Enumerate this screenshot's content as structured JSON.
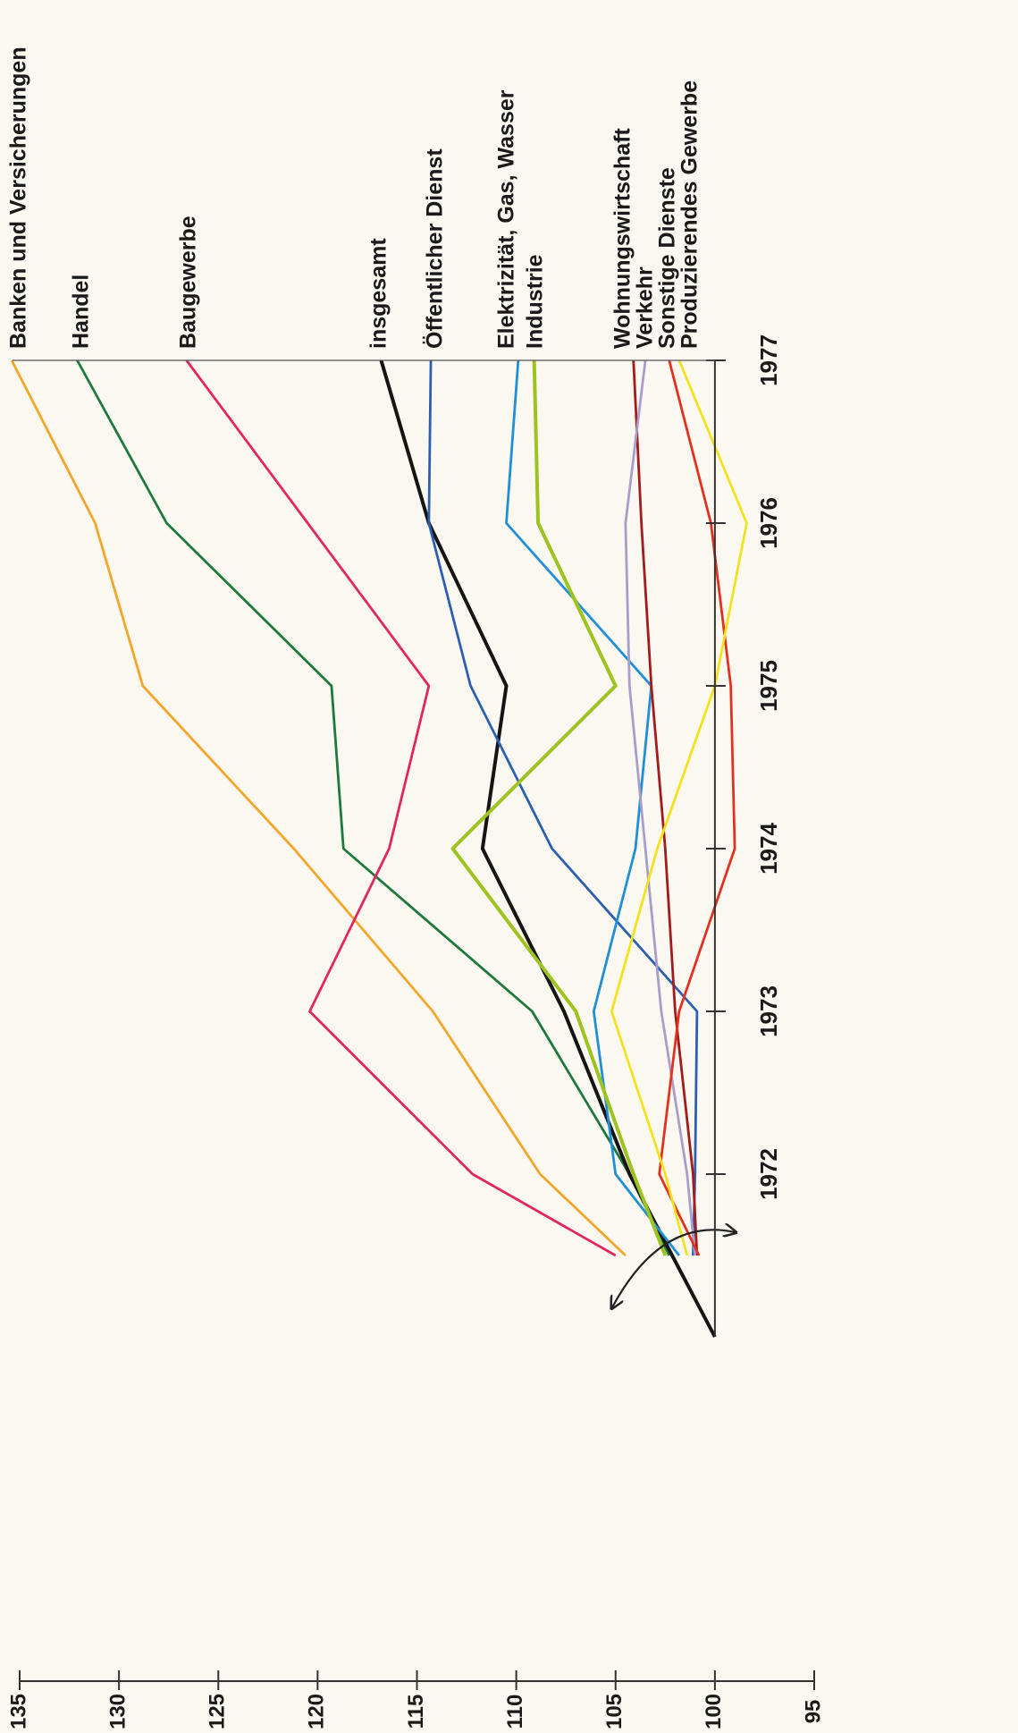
{
  "chart_data": {
    "type": "line",
    "xlim": [
      1971,
      1977
    ],
    "xticks": [
      1972,
      1973,
      1974,
      1975,
      1976,
      1977
    ],
    "ylim": [
      95,
      135
    ],
    "yticks": [
      95,
      100,
      105,
      110,
      115,
      120,
      125,
      130,
      135
    ],
    "series": [
      {
        "name": "Banken und Versicherungen",
        "color": "#f4a62a",
        "x": [
          1971.5,
          1972,
          1973,
          1974,
          1975,
          1976,
          1977
        ],
        "values": [
          104.5,
          108.8,
          114.2,
          121.2,
          128.8,
          131.2,
          135.4
        ]
      },
      {
        "name": "Handel",
        "color": "#1d7a3c",
        "x": [
          1971.5,
          1972,
          1973,
          1974,
          1975,
          1976,
          1977
        ],
        "values": [
          102.3,
          104.3,
          109.2,
          118.7,
          119.3,
          127.6,
          132.1
        ]
      },
      {
        "name": "Baugewerbe",
        "color": "#e2275f",
        "x": [
          1971.5,
          1972,
          1973,
          1974,
          1975,
          1976,
          1977
        ],
        "values": [
          105,
          112.2,
          120.4,
          116.4,
          114.4,
          120.5,
          126.6
        ]
      },
      {
        "name": "insgesamt",
        "color": "#151515",
        "x": [
          1971,
          1972,
          1973,
          1974,
          1975,
          1976,
          1977
        ],
        "values": [
          100,
          104.3,
          107.6,
          111.7,
          110.5,
          114.4,
          116.8
        ]
      },
      {
        "name": "Öffentlicher Dienst",
        "color": "#2c5fb2",
        "x": [
          1971.5,
          1972,
          1973,
          1974,
          1975,
          1976,
          1977
        ],
        "values": [
          101.1,
          101,
          100.9,
          108.2,
          112.3,
          114.4,
          114.3
        ]
      },
      {
        "name": "Elektrizität, Gas, Wasser",
        "color": "#1f8fd6",
        "x": [
          1971.5,
          1972,
          1973,
          1974,
          1975,
          1976,
          1977
        ],
        "values": [
          101.8,
          105,
          106.1,
          104,
          103.2,
          110.5,
          109.9
        ]
      },
      {
        "name": "Industrie",
        "color": "#9cc320",
        "x": [
          1971.5,
          1972,
          1973,
          1974,
          1975,
          1976,
          1977
        ],
        "values": [
          102.5,
          104.1,
          107,
          113.2,
          105,
          108.9,
          109.1
        ]
      },
      {
        "name": "Wohnungswirtschaft",
        "color": "#a11c1c",
        "x": [
          1971.5,
          1972,
          1973,
          1974,
          1975,
          1976,
          1977
        ],
        "values": [
          100.9,
          101.1,
          102,
          102.5,
          103.2,
          103.7,
          104.1
        ]
      },
      {
        "name": "Verkehr",
        "color": "#a99dcb",
        "x": [
          1971.5,
          1972,
          1973,
          1974,
          1975,
          1976,
          1977
        ],
        "values": [
          101,
          101.4,
          102.7,
          103.5,
          104.3,
          104.5,
          103.5
        ]
      },
      {
        "name": "Sonstige Dienste",
        "color": "#e2321f",
        "x": [
          1971.5,
          1972,
          1973,
          1974,
          1975,
          1976,
          1977
        ],
        "values": [
          100.8,
          102.8,
          101.8,
          99,
          99.2,
          100.2,
          102.3
        ]
      },
      {
        "name": "Produzierendes Gewerbe",
        "color": "#f3e21d",
        "x": [
          1971.5,
          1972,
          1973,
          1974,
          1975,
          1976,
          1977
        ],
        "values": [
          101.4,
          102.5,
          105.2,
          102.9,
          100,
          98.4,
          101.8
        ]
      }
    ]
  }
}
